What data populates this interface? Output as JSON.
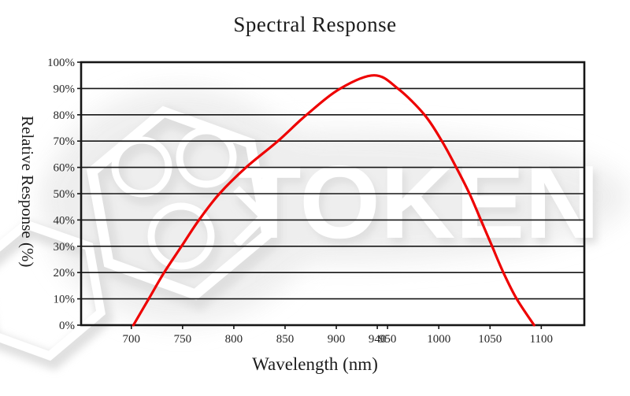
{
  "page": {
    "background": "#ffffff"
  },
  "chart_data": {
    "type": "line",
    "title": "Spectral Response",
    "xlabel": "Wavelength (nm)",
    "ylabel": "Relative Response (%)",
    "xlim": [
      651,
      1142
    ],
    "ylim": [
      0,
      100
    ],
    "x_ticks": [
      700,
      750,
      800,
      850,
      900,
      940,
      950,
      1000,
      1050,
      1100
    ],
    "y_ticks": [
      0,
      10,
      20,
      30,
      40,
      50,
      60,
      70,
      80,
      90,
      100
    ],
    "y_tick_suffix": "%",
    "grid": "horizontal",
    "legend": "none",
    "series": [
      {
        "name": "Relative Response",
        "color": "#ee0000",
        "points": [
          [
            702,
            0
          ],
          [
            717,
            10
          ],
          [
            732,
            20
          ],
          [
            749,
            30
          ],
          [
            766,
            40
          ],
          [
            786,
            50
          ],
          [
            812,
            60
          ],
          [
            843,
            70
          ],
          [
            871,
            80
          ],
          [
            904,
            90
          ],
          [
            937,
            95
          ],
          [
            960,
            90
          ],
          [
            986,
            80
          ],
          [
            1003,
            70
          ],
          [
            1017,
            60
          ],
          [
            1030,
            50
          ],
          [
            1041,
            40
          ],
          [
            1052,
            30
          ],
          [
            1063,
            20
          ],
          [
            1076,
            10
          ],
          [
            1093,
            0
          ]
        ]
      }
    ]
  },
  "watermark": {
    "text": "TOKEN"
  },
  "colors": {
    "curve": "#ee0000",
    "grid": "#161616",
    "text": "#1c1c1c",
    "watermark_gray": "#dcdcdc"
  }
}
